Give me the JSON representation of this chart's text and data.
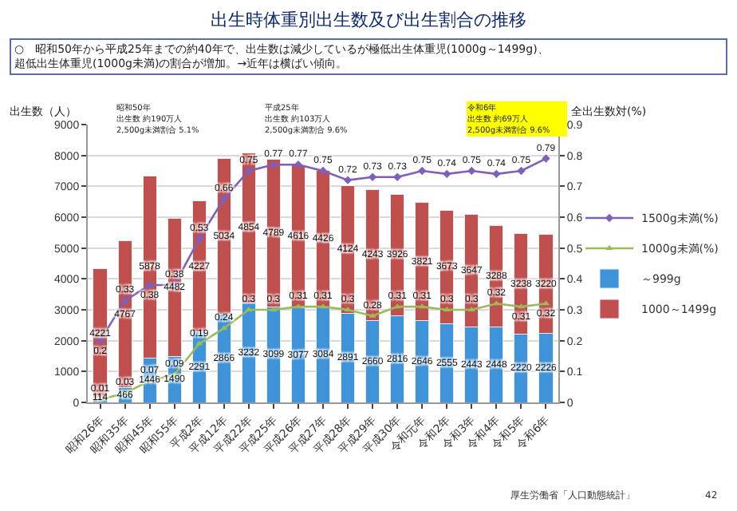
{
  "chart_data": {
    "type": "bar",
    "stacked": true,
    "title": "出生時体重別出生数及び出生割合の推移",
    "subtitle": "○　昭和50年から平成25年までの約40年で、出生数は減少しているが極低出生体重児(1000g～1499g)、超低出生体重児(1000g未満)の割合が増加。→近年は横ばい傾向。",
    "ylabel": "出生数（人）",
    "y2label": "全出生数対(%)",
    "categories": [
      "昭和26年",
      "昭和35年",
      "昭和45年",
      "昭和55年",
      "平成2年",
      "平成12年",
      "平成22年",
      "平成25年",
      "平成26年",
      "平成27年",
      "平成28年",
      "平成29年",
      "平成30年",
      "令和元年",
      "令和2年",
      "令和3年",
      "令和4年",
      "令和5年",
      "令和6年"
    ],
    "series": [
      {
        "name": "～999g",
        "color": "#3f93d8",
        "values": [
          114,
          466,
          1446,
          1490,
          2291,
          2866,
          3232,
          3099,
          3077,
          3084,
          2891,
          2660,
          2816,
          2646,
          2555,
          2443,
          2448,
          2220,
          2226
        ]
      },
      {
        "name": "1000～1499g",
        "color": "#c0504d",
        "values": [
          4221,
          4767,
          5878,
          4482,
          4227,
          5034,
          4854,
          4789,
          4616,
          4426,
          4124,
          4243,
          3926,
          3821,
          3673,
          3647,
          3288,
          3238,
          3220
        ]
      },
      {
        "name": "1000g未満(%)",
        "type": "line",
        "axis": "y2",
        "marker": "triangle",
        "color": "#9bbb59",
        "values": [
          0.01,
          0.03,
          0.07,
          0.09,
          0.19,
          0.24,
          0.3,
          0.3,
          0.31,
          0.31,
          0.3,
          0.28,
          0.31,
          0.31,
          0.3,
          0.3,
          0.32,
          0.31,
          0.32
        ]
      },
      {
        "name": "1500g未満(%)",
        "type": "line",
        "axis": "y2",
        "marker": "diamond",
        "color": "#7f5fb8",
        "values": [
          0.2,
          0.33,
          0.38,
          0.38,
          0.53,
          0.66,
          0.75,
          0.77,
          0.77,
          0.75,
          0.72,
          0.73,
          0.73,
          0.75,
          0.74,
          0.75,
          0.74,
          0.75,
          0.79
        ]
      }
    ],
    "ylim": [
      0,
      9000
    ],
    "yticks": [
      0,
      1000,
      2000,
      3000,
      4000,
      5000,
      6000,
      7000,
      8000,
      9000
    ],
    "y2lim": [
      0,
      0.9
    ],
    "y2ticks": [
      0,
      0.1,
      0.2,
      0.3,
      0.4,
      0.5,
      0.6,
      0.7,
      0.8,
      0.9
    ],
    "grid": "y",
    "legend": "right",
    "data_labels": true,
    "annotations": [
      "昭和50年",
      "出生数 約190万人",
      "2,500g未満割合 5.1%",
      "平成25年",
      "出生数 約103万人",
      "2,500g未満割合 9.6%",
      "令和6年",
      "出生数 約69万人",
      "2,500g未満割合 9.6%",
      "厚生労働省「人口動態統計」",
      "42"
    ]
  }
}
